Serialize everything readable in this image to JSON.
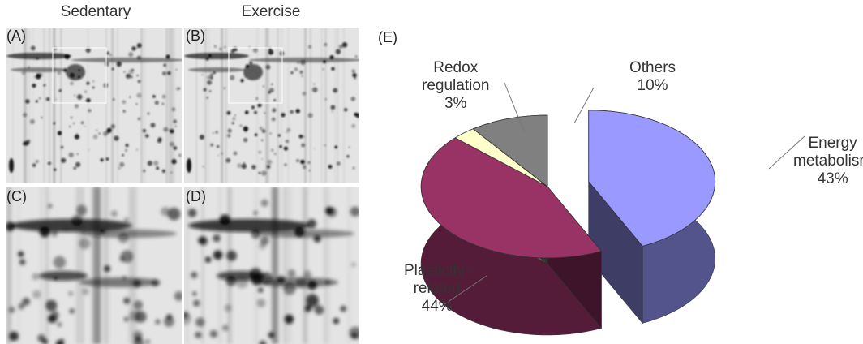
{
  "figure": {
    "column_titles": {
      "left": "Sedentary",
      "right": "Exercise"
    },
    "panel_labels": {
      "a": "(A)",
      "b": "(B)",
      "c": "(C)",
      "d": "(D)",
      "e": "(E)"
    }
  },
  "chart_data": {
    "type": "pie",
    "style": "3d-exploded",
    "slices": [
      {
        "label": "Energy metabolism",
        "value": 43,
        "value_text": "43%",
        "color": "#9999ff"
      },
      {
        "label": "Plasticity-related",
        "value": 44,
        "value_text": "44%",
        "color": "#993366"
      },
      {
        "label": "Redox regulation",
        "value": 3,
        "value_text": "3%",
        "color": "#ffffcc"
      },
      {
        "label": "Others",
        "value": 10,
        "value_text": "10%",
        "color": "#808080"
      }
    ],
    "label_lines": {
      "energy": [
        "Energy",
        "metabolism",
        "43%"
      ],
      "plasticity": [
        "Plasticity-",
        "related",
        "44%"
      ],
      "redox": [
        "Redox",
        "regulation",
        "3%"
      ],
      "others": [
        "Others",
        "10%"
      ]
    }
  }
}
